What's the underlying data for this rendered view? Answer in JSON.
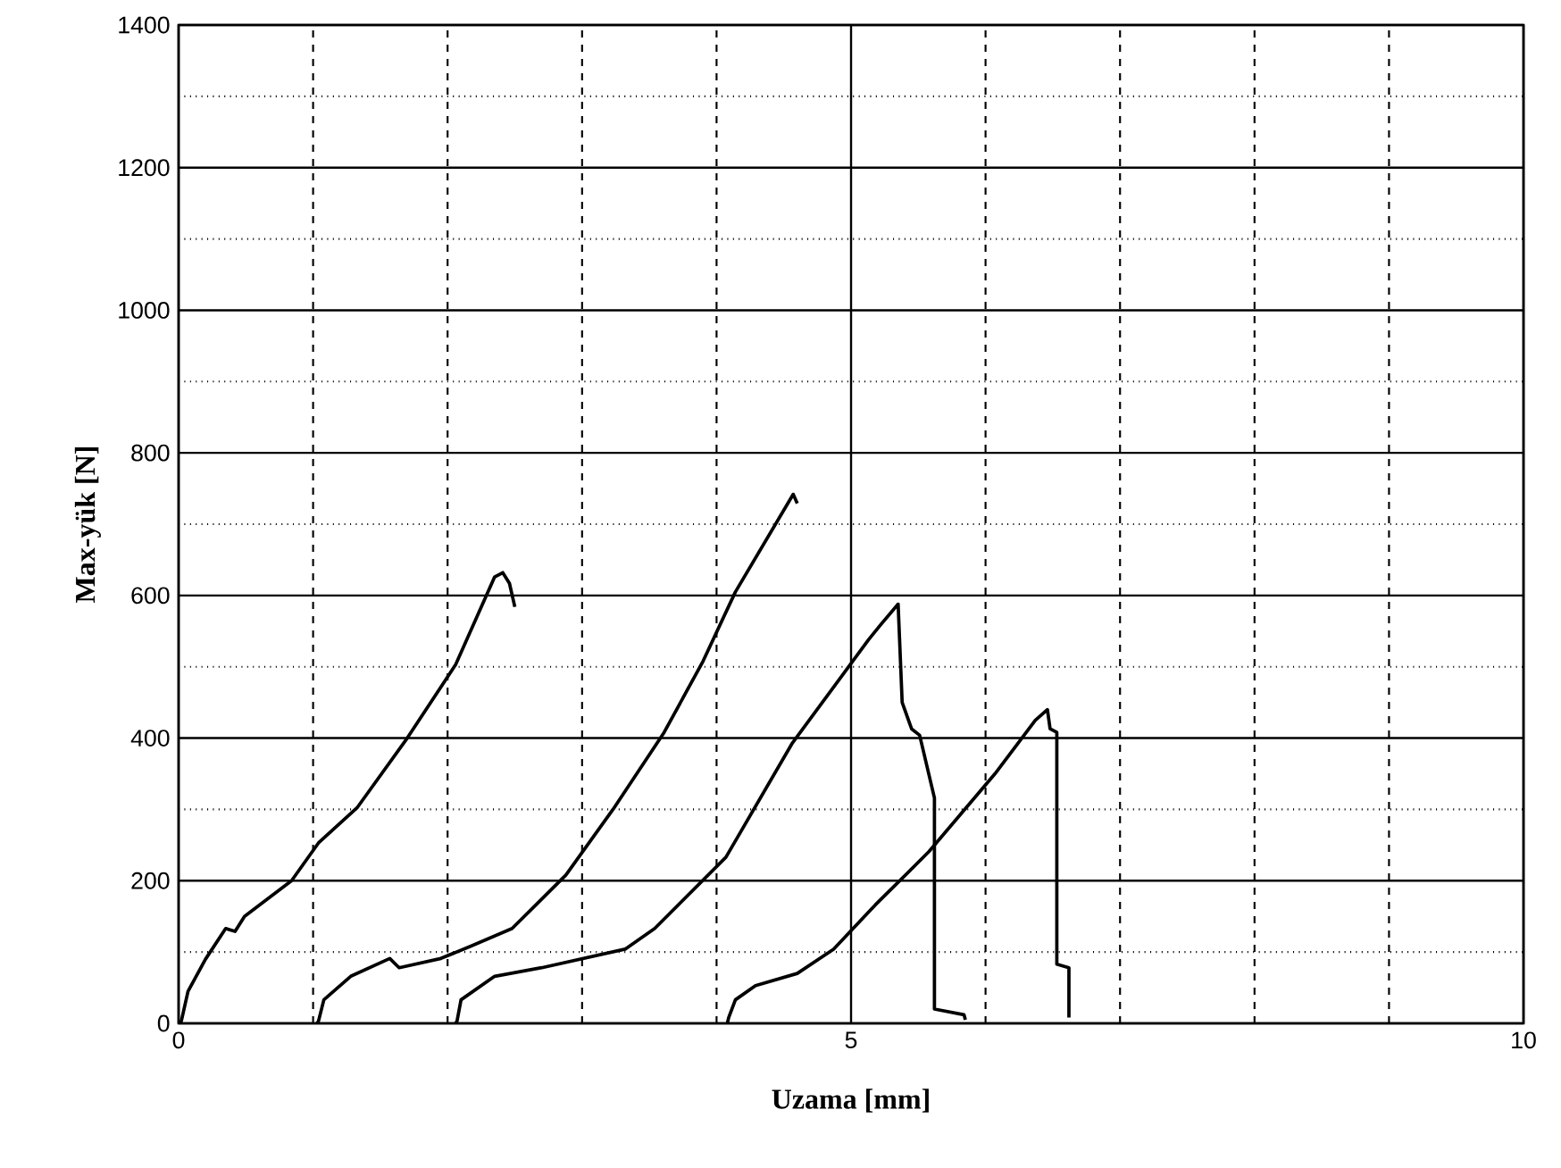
{
  "chart_data": {
    "type": "line",
    "xlabel": "Uzama [mm]",
    "ylabel": "Max-yük [N]",
    "xlim": [
      0,
      10
    ],
    "ylim": [
      0,
      1400
    ],
    "xticks": [
      0,
      5,
      10
    ],
    "yticks": [
      0,
      200,
      400,
      600,
      800,
      1000,
      1200,
      1400
    ],
    "grid": true,
    "line_style": "solid",
    "series": [
      {
        "color": "#000000",
        "x": [
          0,
          0.02,
          0.07,
          0.2,
          0.35,
          0.42,
          0.49,
          0.84,
          1.04,
          1.33,
          1.7,
          2.06,
          2.35,
          2.41,
          2.46,
          2.5
        ],
        "values": [
          0,
          3,
          45,
          90,
          133,
          129,
          150,
          200,
          253,
          303,
          400,
          503,
          626,
          632,
          617,
          584
        ]
      },
      {
        "color": "#000000",
        "x": [
          1.03,
          1.04,
          1.08,
          1.28,
          1.57,
          1.64,
          1.95,
          2.17,
          2.48,
          2.88,
          3.23,
          3.61,
          3.9,
          4.14,
          4.57,
          4.6
        ],
        "values": [
          0,
          3,
          33,
          66,
          91,
          78,
          91,
          108,
          133,
          208,
          300,
          408,
          508,
          605,
          742,
          729
        ]
      },
      {
        "color": "#000000",
        "x": [
          2.06,
          2.07,
          2.1,
          2.35,
          2.7,
          3.32,
          3.54,
          4.07,
          4.56,
          5.13,
          5.22,
          5.35,
          5.38,
          5.45,
          5.51,
          5.62,
          5.62,
          5.84,
          5.85
        ],
        "values": [
          0,
          3,
          33,
          66,
          78,
          104,
          133,
          233,
          392,
          538,
          559,
          588,
          450,
          413,
          404,
          316,
          20,
          12,
          5
        ]
      },
      {
        "color": "#000000",
        "x": [
          4.08,
          4.09,
          4.14,
          4.29,
          4.6,
          4.87,
          5.18,
          5.58,
          6.07,
          6.37,
          6.46,
          6.48,
          6.53,
          6.53,
          6.62,
          6.62
        ],
        "values": [
          0,
          8,
          33,
          53,
          70,
          104,
          166,
          241,
          350,
          425,
          440,
          413,
          408,
          83,
          78,
          8
        ]
      }
    ]
  }
}
